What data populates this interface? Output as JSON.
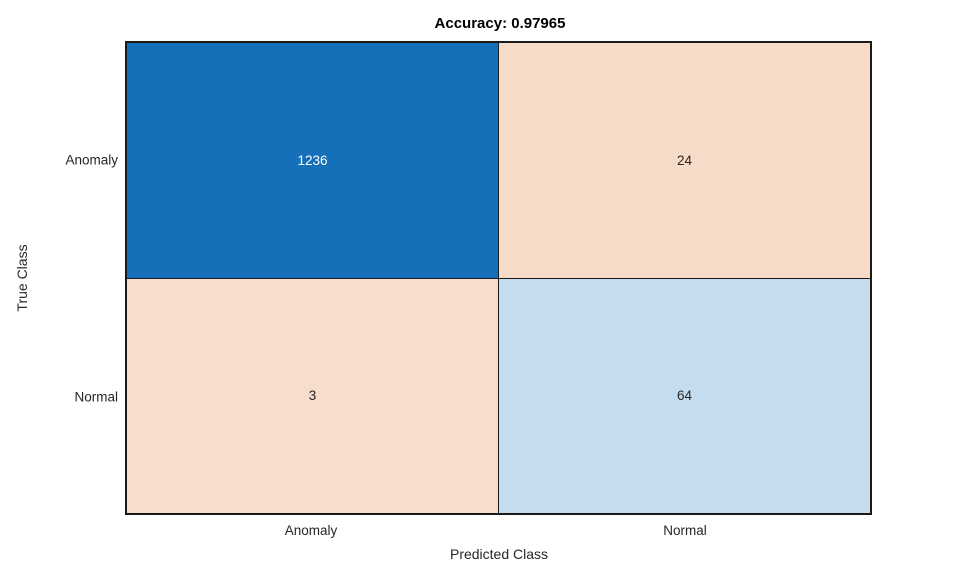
{
  "chart_data": {
    "type": "heatmap",
    "subtype": "confusion-matrix",
    "title": "Accuracy: 0.97965",
    "xlabel": "Predicted Class",
    "ylabel": "True Class",
    "x_categories": [
      "Anomaly",
      "Normal"
    ],
    "y_categories": [
      "Anomaly",
      "Normal"
    ],
    "values": [
      [
        1236,
        24
      ],
      [
        3,
        64
      ]
    ],
    "cell_colors": [
      [
        "#156FB9",
        "#F6DBC8"
      ],
      [
        "#F7DDCB",
        "#C5DCEE"
      ]
    ],
    "cell_text_colors": [
      [
        "#FFFFFF",
        "#262626"
      ],
      [
        "#262626",
        "#262626"
      ]
    ],
    "grid_color": "#1A1A1A",
    "tick_label_color": "#262626",
    "legend_position": "none",
    "grid": "off",
    "background_color": "#FFFFFF"
  }
}
